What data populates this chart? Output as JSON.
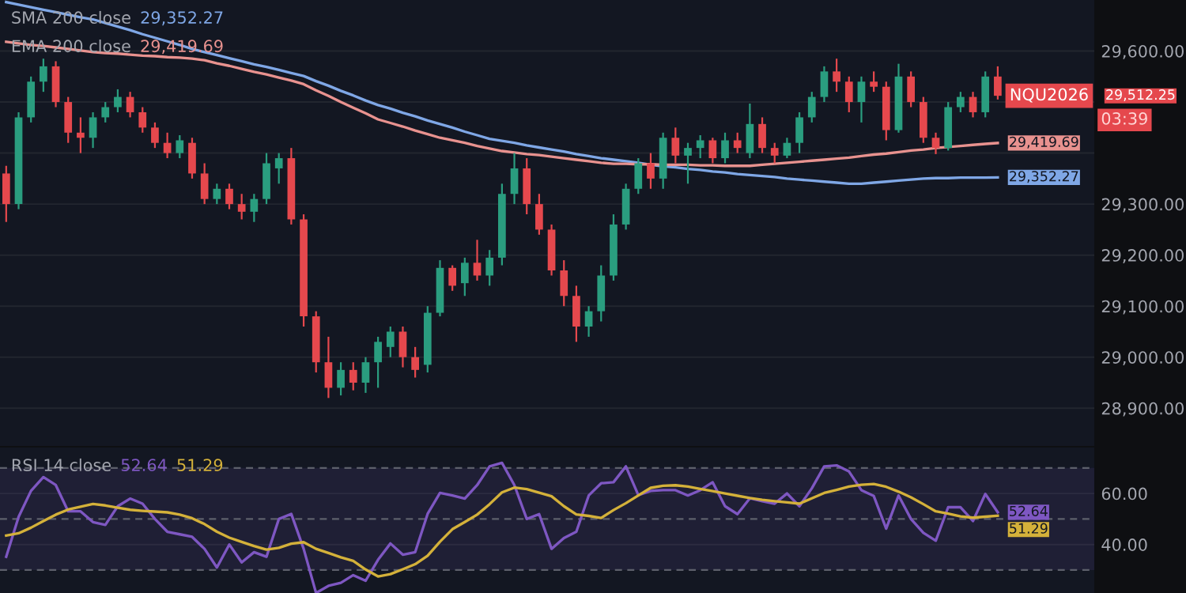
{
  "chart_data": [
    {
      "type": "candlestick",
      "categories": [
        null,
        null,
        null,
        null,
        null,
        null,
        null,
        null,
        null,
        null,
        null,
        null,
        null,
        null,
        null,
        null,
        null,
        null,
        null,
        null,
        null,
        null,
        null,
        null,
        null,
        null,
        null,
        null,
        null,
        null,
        null,
        null,
        null,
        null,
        null,
        null,
        null,
        null,
        null,
        null,
        null,
        null,
        null,
        null,
        null,
        null,
        null,
        null,
        null,
        null,
        null,
        null,
        null,
        null,
        null,
        null,
        null,
        null,
        null,
        null,
        null,
        null,
        null,
        null,
        null,
        null,
        null,
        null,
        null,
        null,
        null,
        null,
        null,
        null,
        null,
        null,
        null,
        null,
        null,
        null,
        null
      ],
      "ohlc": [
        [
          29360,
          29375,
          29265,
          29300
        ],
        [
          29300,
          29480,
          29290,
          29470
        ],
        [
          29470,
          29550,
          29460,
          29540
        ],
        [
          29540,
          29585,
          29520,
          29570
        ],
        [
          29570,
          29580,
          29490,
          29500
        ],
        [
          29500,
          29510,
          29420,
          29440
        ],
        [
          29440,
          29470,
          29400,
          29430
        ],
        [
          29430,
          29480,
          29410,
          29470
        ],
        [
          29470,
          29500,
          29460,
          29490
        ],
        [
          29490,
          29525,
          29480,
          29510
        ],
        [
          29510,
          29520,
          29470,
          29480
        ],
        [
          29480,
          29490,
          29440,
          29450
        ],
        [
          29450,
          29460,
          29410,
          29420
        ],
        [
          29420,
          29440,
          29390,
          29400
        ],
        [
          29400,
          29435,
          29390,
          29425
        ],
        [
          29420,
          29430,
          29350,
          29360
        ],
        [
          29360,
          29380,
          29300,
          29310
        ],
        [
          29310,
          29340,
          29300,
          29330
        ],
        [
          29330,
          29340,
          29290,
          29300
        ],
        [
          29300,
          29320,
          29270,
          29285
        ],
        [
          29285,
          29320,
          29265,
          29310
        ],
        [
          29310,
          29400,
          29300,
          29380
        ],
        [
          29370,
          29400,
          29340,
          29390
        ],
        [
          29390,
          29410,
          29260,
          29270
        ],
        [
          29270,
          29280,
          29060,
          29080
        ],
        [
          29080,
          29090,
          28970,
          28990
        ],
        [
          28990,
          29040,
          28920,
          28940
        ],
        [
          28940,
          28990,
          28925,
          28975
        ],
        [
          28975,
          28990,
          28935,
          28950
        ],
        [
          28950,
          29000,
          28930,
          28990
        ],
        [
          28990,
          29040,
          28940,
          29030
        ],
        [
          29020,
          29060,
          29000,
          29050
        ],
        [
          29050,
          29060,
          28980,
          29000
        ],
        [
          29000,
          29020,
          28960,
          28975
        ],
        [
          28985,
          29100,
          28970,
          29087
        ],
        [
          29087,
          29190,
          29080,
          29175
        ],
        [
          29175,
          29180,
          29130,
          29140
        ],
        [
          29145,
          29195,
          29120,
          29185
        ],
        [
          29185,
          29230,
          29150,
          29160
        ],
        [
          29160,
          29210,
          29140,
          29195
        ],
        [
          29195,
          29340,
          29180,
          29320
        ],
        [
          29320,
          29400,
          29300,
          29370
        ],
        [
          29370,
          29390,
          29280,
          29300
        ],
        [
          29300,
          29320,
          29240,
          29250
        ],
        [
          29250,
          29260,
          29160,
          29170
        ],
        [
          29170,
          29190,
          29100,
          29120
        ],
        [
          29120,
          29140,
          29030,
          29060
        ],
        [
          29060,
          29100,
          29040,
          29090
        ],
        [
          29090,
          29180,
          29070,
          29160
        ],
        [
          29160,
          29280,
          29150,
          29260
        ],
        [
          29260,
          29340,
          29250,
          29330
        ],
        [
          29330,
          29390,
          29320,
          29380
        ],
        [
          29380,
          29400,
          29330,
          29350
        ],
        [
          29350,
          29440,
          29330,
          29430
        ],
        [
          29430,
          29450,
          29380,
          29395
        ],
        [
          29395,
          29420,
          29340,
          29410
        ],
        [
          29410,
          29435,
          29390,
          29425
        ],
        [
          29425,
          29430,
          29380,
          29390
        ],
        [
          29390,
          29440,
          29380,
          29425
        ],
        [
          29425,
          29440,
          29400,
          29410
        ],
        [
          29400,
          29497,
          29390,
          29457
        ],
        [
          29457,
          29470,
          29400,
          29410
        ],
        [
          29410,
          29420,
          29380,
          29395
        ],
        [
          29395,
          29430,
          29390,
          29420
        ],
        [
          29420,
          29480,
          29400,
          29470
        ],
        [
          29470,
          29520,
          29460,
          29510
        ],
        [
          29510,
          29570,
          29500,
          29560
        ],
        [
          29560,
          29585,
          29520,
          29540
        ],
        [
          29540,
          29550,
          29480,
          29500
        ],
        [
          29500,
          29550,
          29460,
          29540
        ],
        [
          29540,
          29560,
          29520,
          29530
        ],
        [
          29530,
          29540,
          29425,
          29445
        ],
        [
          29445,
          29575,
          29440,
          29550
        ],
        [
          29550,
          29560,
          29490,
          29500
        ],
        [
          29500,
          29510,
          29420,
          29430
        ],
        [
          29430,
          29440,
          29398,
          29410
        ],
        [
          29410,
          29500,
          29405,
          29490
        ],
        [
          29490,
          29520,
          29480,
          29510
        ],
        [
          29510,
          29520,
          29470,
          29480
        ],
        [
          29480,
          29560,
          29470,
          29550
        ],
        [
          29550,
          29570,
          29505,
          29512.25
        ]
      ],
      "value_labels": [
        null,
        null,
        null,
        null,
        null,
        null,
        null,
        null,
        null,
        null,
        null,
        null,
        null,
        null,
        null,
        null,
        null,
        null,
        null,
        null,
        null,
        null,
        null,
        null,
        null,
        null,
        null,
        null,
        null,
        null,
        null,
        null,
        null,
        null,
        null,
        null,
        null,
        null,
        null,
        null,
        null,
        null,
        null,
        null,
        null,
        null,
        null,
        null,
        null,
        null,
        null,
        null,
        null,
        null,
        null,
        null,
        null,
        null,
        null,
        null,
        null,
        null,
        null,
        null,
        null,
        null,
        null,
        null,
        null,
        null,
        null,
        null,
        null,
        null,
        null,
        null,
        null,
        null,
        null,
        null,
        "29,512.25"
      ],
      "series": [
        {
          "name": "SMA 200 close",
          "type": "line",
          "color": "#7fa7e6",
          "values": [
            29696,
            29691,
            29686,
            29681,
            29676,
            29671,
            29666,
            29662,
            29655,
            29648,
            29641,
            29633,
            29626,
            29619,
            29612,
            29604,
            29598,
            29592,
            29586,
            29580,
            29574,
            29569,
            29563,
            29557,
            29551,
            29541,
            29532,
            29522,
            29513,
            29503,
            29494,
            29487,
            29479,
            29472,
            29464,
            29457,
            29450,
            29442,
            29435,
            29428,
            29424,
            29420,
            29415,
            29411,
            29407,
            29403,
            29398,
            29394,
            29390,
            29387,
            29384,
            29381,
            29377,
            29374,
            29372,
            29369,
            29367,
            29364,
            29362,
            29359,
            29357,
            29355,
            29353,
            29350,
            29348,
            29346,
            29344,
            29342,
            29340,
            29340,
            29342,
            29344,
            29346,
            29348,
            29350,
            29351,
            29351,
            29352,
            29352,
            29352,
            29352.27
          ],
          "value_labels": [
            null,
            null,
            null,
            null,
            null,
            null,
            null,
            null,
            null,
            null,
            null,
            null,
            null,
            null,
            null,
            null,
            null,
            null,
            null,
            null,
            null,
            null,
            null,
            null,
            null,
            null,
            null,
            null,
            null,
            null,
            null,
            null,
            null,
            null,
            null,
            null,
            null,
            null,
            null,
            null,
            null,
            null,
            null,
            null,
            null,
            null,
            null,
            null,
            null,
            null,
            null,
            null,
            null,
            null,
            null,
            null,
            null,
            null,
            null,
            null,
            null,
            null,
            null,
            null,
            null,
            null,
            null,
            null,
            null,
            null,
            null,
            null,
            null,
            null,
            null,
            null,
            null,
            null,
            null,
            null,
            "29,352.27"
          ]
        },
        {
          "name": "EMA 200 close",
          "type": "line",
          "color": "#e8928f",
          "values": [
            29618,
            29615,
            29612,
            29610,
            29607,
            29604,
            29601,
            29598,
            29596,
            29595,
            29593,
            29591,
            29590,
            29588,
            29587,
            29585,
            29582,
            29576,
            29571,
            29565,
            29559,
            29554,
            29548,
            29542,
            29535,
            29523,
            29512,
            29500,
            29489,
            29478,
            29466,
            29459,
            29452,
            29444,
            29437,
            29430,
            29425,
            29420,
            29414,
            29409,
            29404,
            29401,
            29398,
            29396,
            29393,
            29390,
            29387,
            29384,
            29381,
            29379,
            29379,
            29378,
            29378,
            29377,
            29377,
            29377,
            29376,
            29376,
            29375,
            29375,
            29375,
            29377,
            29379,
            29381,
            29383,
            29385,
            29387,
            29389,
            29391,
            29394,
            29397,
            29399,
            29402,
            29405,
            29407,
            29410,
            29412,
            29414,
            29416,
            29418,
            29419.69
          ],
          "value_labels": [
            null,
            null,
            null,
            null,
            null,
            null,
            null,
            null,
            null,
            null,
            null,
            null,
            null,
            null,
            null,
            null,
            null,
            null,
            null,
            null,
            null,
            null,
            null,
            null,
            null,
            null,
            null,
            null,
            null,
            null,
            null,
            null,
            null,
            null,
            null,
            null,
            null,
            null,
            null,
            null,
            null,
            null,
            null,
            null,
            null,
            null,
            null,
            null,
            null,
            null,
            null,
            null,
            null,
            null,
            null,
            null,
            null,
            null,
            null,
            null,
            null,
            null,
            null,
            null,
            null,
            null,
            null,
            null,
            null,
            null,
            null,
            null,
            null,
            null,
            null,
            null,
            null,
            null,
            null,
            null,
            "29,419.69"
          ]
        }
      ],
      "ylim": [
        28826,
        29700
      ],
      "yticks": [
        {
          "value": 28900,
          "label": "28,900.00"
        },
        {
          "value": 29000,
          "label": "29,000.00"
        },
        {
          "value": 29100,
          "label": "29,100.00"
        },
        {
          "value": 29200,
          "label": "29,200.00"
        },
        {
          "value": 29300,
          "label": "29,300.00"
        },
        {
          "value": 29400,
          "label": null
        },
        {
          "value": 29500,
          "label": null
        },
        {
          "value": 29600,
          "label": "29,600.00"
        }
      ],
      "tick_labels": "y",
      "grid": "y",
      "annotations": [
        "NQU2026",
        "03:39"
      ]
    },
    {
      "type": "line",
      "categories": [
        null,
        null,
        null,
        null,
        null,
        null,
        null,
        null,
        null,
        null,
        null,
        null,
        null,
        null,
        null,
        null,
        null,
        null,
        null,
        null,
        null,
        null,
        null,
        null,
        null,
        null,
        null,
        null,
        null,
        null,
        null,
        null,
        null,
        null,
        null,
        null,
        null,
        null,
        null,
        null,
        null,
        null,
        null,
        null,
        null,
        null,
        null,
        null,
        null,
        null,
        null,
        null,
        null,
        null,
        null,
        null,
        null,
        null,
        null,
        null,
        null,
        null,
        null,
        null,
        null,
        null,
        null,
        null,
        null,
        null,
        null,
        null,
        null,
        null,
        null,
        null,
        null,
        null,
        null,
        null,
        null
      ],
      "series": [
        {
          "name": "RSI 14 close",
          "color": "#7e57c2",
          "values": [
            35.2,
            50.8,
            61,
            66.4,
            63.3,
            53,
            53,
            48.8,
            47.7,
            55,
            58,
            56,
            50,
            45,
            44,
            43,
            38.3,
            31,
            40,
            33,
            37,
            35.2,
            50,
            52,
            38.3,
            21,
            23.8,
            25,
            28,
            25.8,
            34,
            40.4,
            36,
            37,
            52,
            60.2,
            59.2,
            58,
            63.3,
            70.6,
            72,
            63.3,
            50,
            51.9,
            38.3,
            42.5,
            45,
            59.2,
            64,
            64.4,
            70.6,
            59.4,
            61,
            61.3,
            61.3,
            59.2,
            61.3,
            64.4,
            55,
            51.9,
            58.1,
            57,
            56,
            60,
            55,
            62,
            70.6,
            71,
            68.6,
            61.3,
            59,
            46.2,
            59.2,
            50,
            44.6,
            41.5,
            54.6,
            54.6,
            49.2,
            59.8,
            52.64
          ],
          "value_labels": [
            null,
            null,
            null,
            null,
            null,
            null,
            null,
            null,
            null,
            null,
            null,
            null,
            null,
            null,
            null,
            null,
            null,
            null,
            null,
            null,
            null,
            null,
            null,
            null,
            null,
            null,
            null,
            null,
            null,
            null,
            null,
            null,
            null,
            null,
            null,
            null,
            null,
            null,
            null,
            null,
            null,
            null,
            null,
            null,
            null,
            null,
            null,
            null,
            null,
            null,
            null,
            null,
            null,
            null,
            null,
            null,
            null,
            null,
            null,
            null,
            null,
            null,
            null,
            null,
            null,
            null,
            null,
            null,
            null,
            null,
            null,
            null,
            null,
            null,
            null,
            null,
            null,
            null,
            null,
            null,
            "52.64"
          ]
        },
        {
          "color": "#d4b13a",
          "values": [
            43.5,
            44.4,
            46.6,
            49.2,
            51.7,
            53.7,
            54.8,
            55.9,
            55.3,
            54.4,
            53.6,
            53.2,
            52.9,
            52.6,
            51.7,
            50.3,
            48,
            45,
            42.7,
            41,
            39.4,
            38,
            38.7,
            40.3,
            40.9,
            38.3,
            36.7,
            35,
            33.6,
            30.2,
            27.5,
            28.4,
            30.3,
            32.3,
            35.6,
            41.1,
            46,
            48.8,
            51.7,
            55.8,
            60.4,
            62.3,
            61.7,
            60.3,
            58.9,
            55,
            51.8,
            51.2,
            50.4,
            53.5,
            56.2,
            59.2,
            62.2,
            63,
            63.2,
            62.7,
            61.8,
            60.9,
            60,
            59.1,
            58.2,
            57.5,
            57,
            56.5,
            56,
            58.1,
            60.2,
            61.4,
            62.7,
            63.4,
            63.7,
            62.6,
            60.7,
            58.5,
            55.8,
            53,
            52.1,
            51,
            50.5,
            50.9,
            51.29
          ],
          "value_labels": [
            null,
            null,
            null,
            null,
            null,
            null,
            null,
            null,
            null,
            null,
            null,
            null,
            null,
            null,
            null,
            null,
            null,
            null,
            null,
            null,
            null,
            null,
            null,
            null,
            null,
            null,
            null,
            null,
            null,
            null,
            null,
            null,
            null,
            null,
            null,
            null,
            null,
            null,
            null,
            null,
            null,
            null,
            null,
            null,
            null,
            null,
            null,
            null,
            null,
            null,
            null,
            null,
            null,
            null,
            null,
            null,
            null,
            null,
            null,
            null,
            null,
            null,
            null,
            null,
            null,
            null,
            null,
            null,
            null,
            null,
            null,
            null,
            null,
            null,
            null,
            null,
            null,
            null,
            null,
            null,
            "51.29"
          ]
        }
      ],
      "ylim": [
        21,
        78
      ],
      "yticks": [
        {
          "value": 40,
          "label": "40.00"
        },
        {
          "value": 60,
          "label": "60.00"
        }
      ],
      "tick_labels": "y",
      "grid": "y",
      "ref_lines": [
        {
          "axis": "y",
          "value": 70,
          "line_style": "dashed",
          "color": "#5d606b"
        },
        {
          "axis": "y",
          "value": 50,
          "line_style": "dashed",
          "color": "#5d606b"
        },
        {
          "axis": "y",
          "value": 30,
          "line_style": "dashed",
          "color": "#5d606b"
        }
      ],
      "bands": [
        {
          "axis": "y",
          "from": 30,
          "to": 70,
          "color": "#7e57c2"
        }
      ]
    }
  ]
}
